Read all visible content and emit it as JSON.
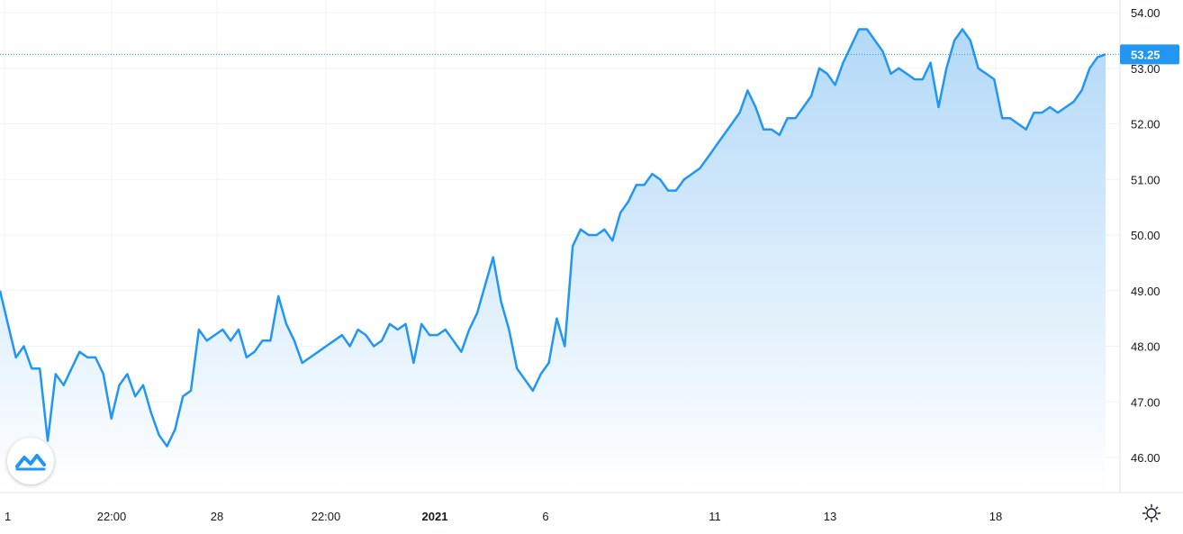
{
  "chart_data": {
    "type": "area",
    "current_price": "53.25",
    "y_ticks": [
      "54.00",
      "53.00",
      "52.00",
      "51.00",
      "50.00",
      "49.00",
      "48.00",
      "47.00",
      "46.00"
    ],
    "ylim": [
      45.5,
      54.2
    ],
    "x_ticks": [
      {
        "label": "1",
        "bold": false
      },
      {
        "label": "22:00",
        "bold": false
      },
      {
        "label": "28",
        "bold": false
      },
      {
        "label": "22:00",
        "bold": false
      },
      {
        "label": "2021",
        "bold": true
      },
      {
        "label": "6",
        "bold": false
      },
      {
        "label": "11",
        "bold": false
      },
      {
        "label": "13",
        "bold": false
      },
      {
        "label": "18",
        "bold": false
      }
    ],
    "series": [
      {
        "values": [
          49.0,
          48.4,
          47.8,
          48.0,
          47.6,
          47.6,
          46.3,
          47.5,
          47.3,
          47.6,
          47.9,
          47.8,
          47.8,
          47.5,
          46.7,
          47.3,
          47.5,
          47.1,
          47.3,
          46.8,
          46.4,
          46.2,
          46.5,
          47.1,
          47.2,
          48.3,
          48.1,
          48.2,
          48.3,
          48.1,
          48.3,
          47.8,
          47.9,
          48.1,
          48.1,
          48.9,
          48.4,
          48.1,
          47.7,
          47.8,
          47.9,
          48.0,
          48.1,
          48.2,
          48.0,
          48.3,
          48.2,
          48.0,
          48.1,
          48.4,
          48.3,
          48.4,
          47.7,
          48.4,
          48.2,
          48.2,
          48.3,
          48.1,
          47.9,
          48.3,
          48.6,
          49.1,
          49.6,
          48.8,
          48.3,
          47.6,
          47.4,
          47.2,
          47.5,
          47.7,
          48.5,
          48.0,
          49.8,
          50.1,
          50.0,
          50.0,
          50.1,
          49.9,
          50.4,
          50.6,
          50.9,
          50.9,
          51.1,
          51.0,
          50.8,
          50.8,
          51.0,
          51.1,
          51.2,
          51.4,
          51.6,
          51.8,
          52.0,
          52.2,
          52.6,
          52.3,
          51.9,
          51.9,
          51.8,
          52.1,
          52.1,
          52.3,
          52.5,
          53.0,
          52.9,
          52.7,
          53.1,
          53.4,
          53.7,
          53.7,
          53.5,
          53.3,
          52.9,
          53.0,
          52.9,
          52.8,
          52.8,
          53.1,
          52.3,
          53.0,
          53.5,
          53.7,
          53.5,
          53.0,
          52.9,
          52.8,
          52.1,
          52.1,
          52.0,
          51.9,
          52.2,
          52.2,
          52.3,
          52.2,
          52.3,
          52.4,
          52.6,
          53.0,
          53.2,
          53.25
        ]
      }
    ]
  },
  "icons": {
    "logo": "tradingview-logo-icon",
    "settings": "gear-icon"
  },
  "colors": {
    "line": "#2196f3",
    "area_top": "#b3d9f8",
    "area_bottom": "#ffffff",
    "grid": "#f0f3fa",
    "badge": "#2196f3",
    "axis_border": "#e0e3eb",
    "price_line": "#2196f3"
  }
}
